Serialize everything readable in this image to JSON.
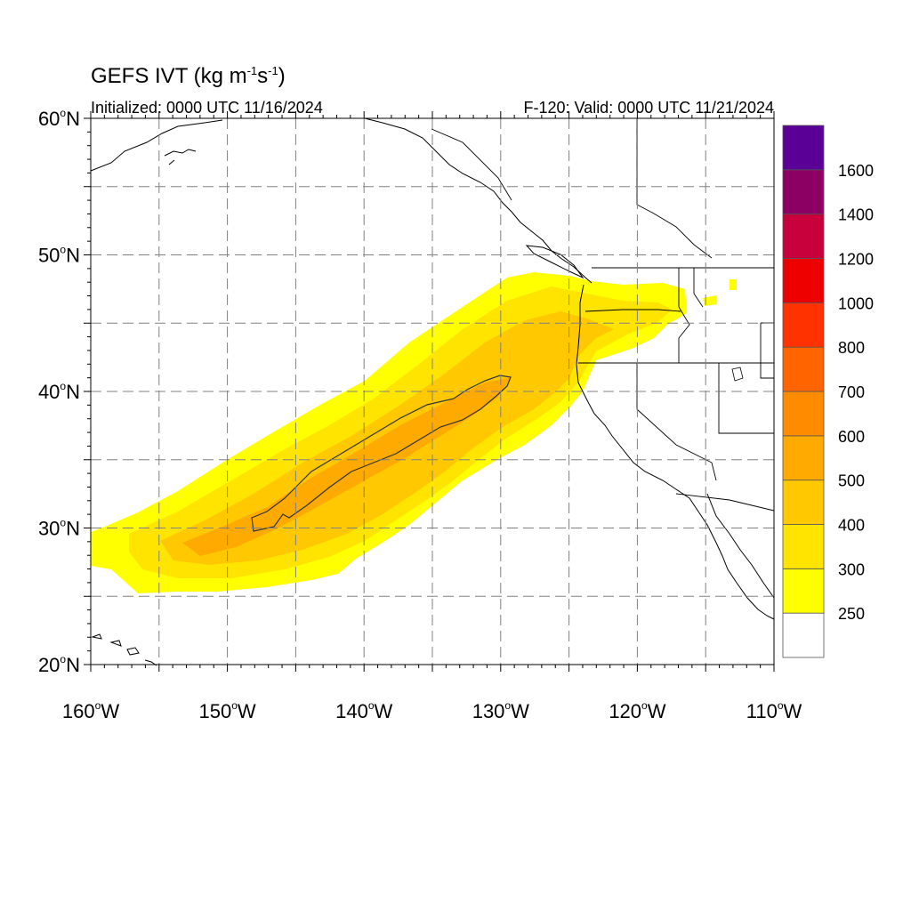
{
  "title": {
    "main": "GEFS IVT (kg m",
    "exp1": "-1",
    "mid": "s",
    "exp2": "-1",
    "close": ")"
  },
  "initialized": "Initialized: 0000 UTC 11/16/2024",
  "valid": "F-120: Valid: 0000 UTC 11/21/2024",
  "map": {
    "lon_range": [
      -160,
      -110
    ],
    "lat_range": [
      20,
      60
    ],
    "lat_labels": [
      "60",
      "50",
      "40",
      "30",
      "20"
    ],
    "lon_labels": [
      "160",
      "150",
      "140",
      "130",
      "120",
      "110"
    ],
    "lat_suffix": "N",
    "lon_suffix": "W",
    "grid": "dashed",
    "grid_color": "#808080",
    "coast_color": "#000000"
  },
  "colorbar": {
    "labels": [
      "250",
      "300",
      "400",
      "500",
      "600",
      "700",
      "800",
      "1000",
      "1200",
      "1400",
      "1600"
    ],
    "colors": [
      "#ffffff",
      "#ffff00",
      "#ffe400",
      "#ffc800",
      "#ffaa00",
      "#ff8c00",
      "#ff6400",
      "#ff3200",
      "#ee0000",
      "#c8003c",
      "#8c0064",
      "#5a0096"
    ]
  },
  "ivt_bands": [
    {
      "level": "250",
      "color": "#ffff00"
    },
    {
      "level": "300",
      "color": "#ffe400"
    },
    {
      "level": "400",
      "color": "#ffc800"
    },
    {
      "level": "500",
      "color": "#ffaa00"
    }
  ]
}
